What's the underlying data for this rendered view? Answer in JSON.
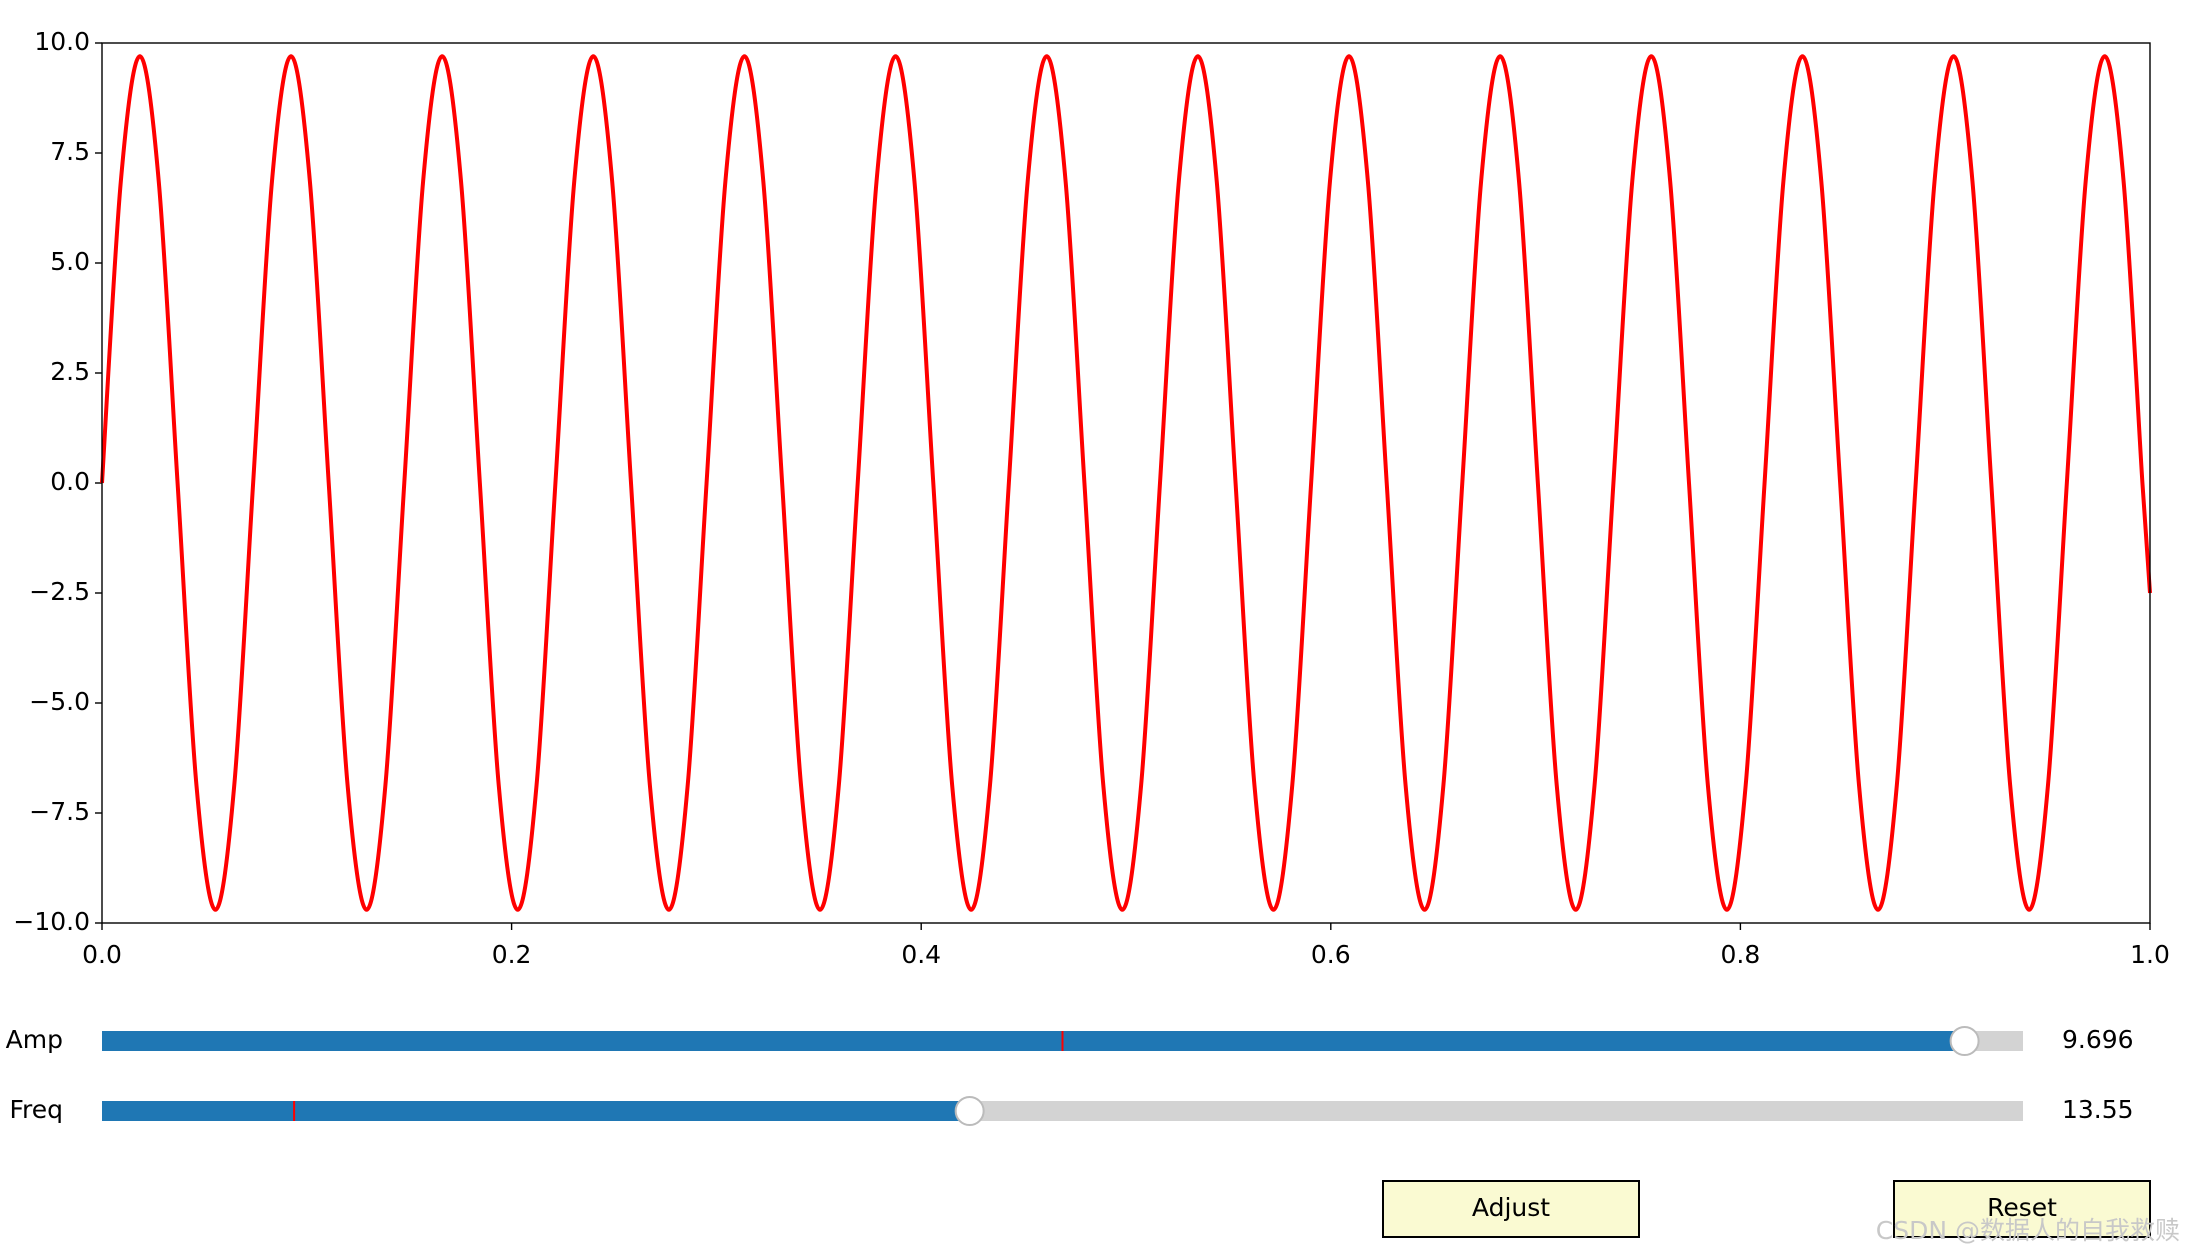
{
  "chart_data": {
    "type": "line",
    "x": [
      0,
      0.0092,
      0.0185,
      0.0277,
      0.0369,
      0.0461,
      0.0554,
      0.0646,
      0.0738,
      0.083,
      0.0923,
      0.1015,
      0.1107,
      0.1199,
      0.1292,
      0.1384,
      0.1476,
      0.1568,
      0.1661,
      0.1753,
      0.1845,
      0.1937,
      0.203,
      0.2122,
      0.2214,
      0.2306,
      0.2399,
      0.2491,
      0.2583,
      0.2675,
      0.2768,
      0.286,
      0.2952,
      0.3044,
      0.3137,
      0.3229,
      0.3321,
      0.3413,
      0.3506,
      0.3598,
      0.369,
      0.3782,
      0.3875,
      0.3967,
      0.4059,
      0.4151,
      0.4244,
      0.4336,
      0.4428,
      0.452,
      0.4613,
      0.4705,
      0.4797,
      0.4889,
      0.4982,
      0.5074,
      0.5166,
      0.5258,
      0.5351,
      0.5443,
      0.5535,
      0.5627,
      0.572,
      0.5812,
      0.5904,
      0.5996,
      0.6089,
      0.6181,
      0.6273,
      0.6365,
      0.6458,
      0.655,
      0.6642,
      0.6734,
      0.6827,
      0.6919,
      0.7011,
      0.7103,
      0.7196,
      0.7288,
      0.738,
      0.7472,
      0.7565,
      0.7657,
      0.7749,
      0.7841,
      0.7934,
      0.8026,
      0.8118,
      0.821,
      0.8303,
      0.8395,
      0.8487,
      0.8579,
      0.8672,
      0.8764,
      0.8856,
      0.8948,
      0.9041,
      0.9133,
      0.9225,
      0.9317,
      0.941,
      0.9502,
      0.9594,
      0.9686,
      0.9779,
      0.9871,
      0.9963,
      1.0
    ],
    "series": [
      {
        "color": "#ff0000",
        "values": [
          0,
          6.86,
          9.7,
          6.86,
          0,
          -6.86,
          -9.7,
          -6.86,
          0,
          6.86,
          9.7,
          6.86,
          0,
          -6.86,
          -9.7,
          -6.86,
          0,
          6.86,
          9.7,
          6.86,
          0,
          -6.86,
          -9.7,
          -6.86,
          0,
          6.86,
          9.7,
          6.86,
          0,
          -6.86,
          -9.7,
          -6.86,
          0,
          6.86,
          9.7,
          6.86,
          0,
          -6.86,
          -9.7,
          -6.86,
          0,
          6.86,
          9.7,
          6.86,
          0,
          -6.86,
          -9.7,
          -6.86,
          0,
          6.86,
          9.7,
          6.86,
          0,
          -6.86,
          -9.7,
          -6.86,
          0,
          6.86,
          9.7,
          6.86,
          0,
          -6.86,
          -9.7,
          -6.86,
          0,
          6.86,
          9.7,
          6.86,
          0,
          -6.86,
          -9.7,
          -6.86,
          0,
          6.86,
          9.7,
          6.86,
          0,
          -6.86,
          -9.7,
          -6.86,
          0,
          6.86,
          9.7,
          6.86,
          0,
          -6.86,
          -9.7,
          -6.86,
          0,
          6.86,
          9.7,
          6.86,
          0,
          -6.86,
          -9.7,
          -6.86,
          0,
          6.86,
          9.7,
          6.86,
          0,
          -6.86,
          -9.7,
          -6.86,
          0,
          6.86,
          9.7,
          6.86,
          0,
          -2.5
        ]
      }
    ],
    "xlim": [
      0,
      1
    ],
    "ylim": [
      -10,
      10
    ],
    "xticks": [
      {
        "value": 0,
        "label": "0.0"
      },
      0.2,
      0.4,
      0.6,
      0.8,
      {
        "value": 1,
        "label": "1.0"
      }
    ],
    "yticks": [
      {
        "value": -10,
        "label": "−10.0"
      },
      {
        "value": -7.5,
        "label": "−7.5"
      },
      {
        "value": -5,
        "label": "−5.0"
      },
      {
        "value": -2.5,
        "label": "−2.5"
      },
      {
        "value": 0,
        "label": "0.0"
      },
      2.5,
      {
        "value": 5,
        "label": "5.0"
      },
      7.5,
      {
        "value": 10,
        "label": "10.0"
      }
    ]
  },
  "sliders": [
    {
      "label": "Amp",
      "value": 9.696,
      "valmin": 0,
      "valmax": 10,
      "valinit": 5
    },
    {
      "label": "Freq",
      "value": 13.55,
      "valmin": 0,
      "valmax": 30,
      "valinit": 3
    }
  ],
  "buttons": [
    "Adjust",
    "Reset"
  ],
  "watermark": "CSDN @数据人的自我救赎"
}
